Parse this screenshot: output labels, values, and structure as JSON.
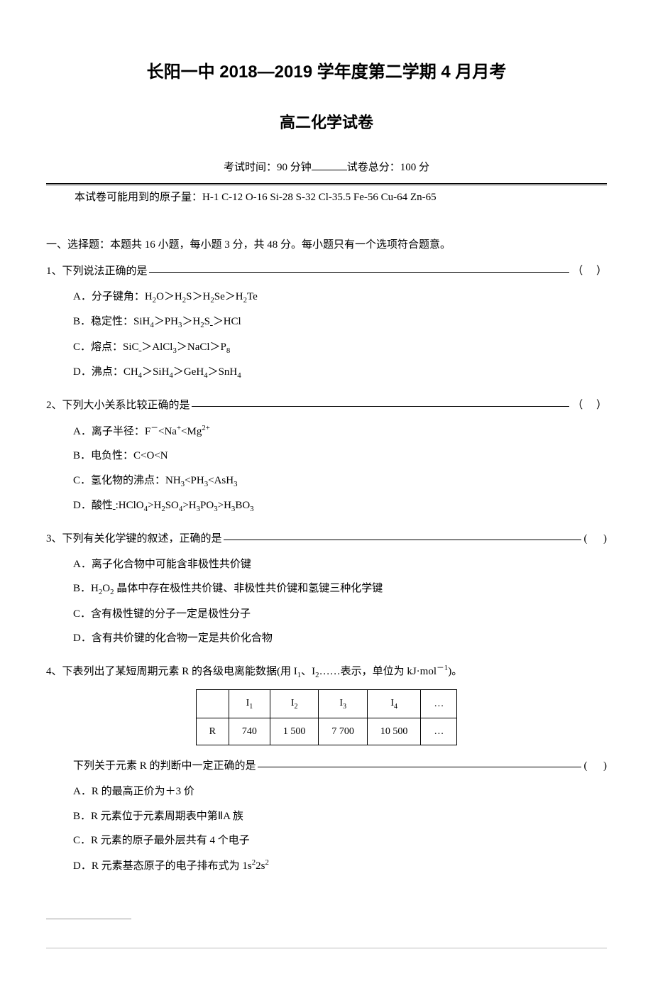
{
  "header": {
    "title_main": "长阳一中 2018—2019 学年度第二学期 4 月月考",
    "title_sub": "高二化学试卷",
    "exam_info_prefix": "考试时间：90 分钟",
    "exam_info_suffix": "试卷总分：100 分",
    "atomic_masses": "本试卷可能用到的原子量：H-1  C-12   O-16   Si-28   S-32   Cl-35.5   Fe-56   Cu-64   Zn-65"
  },
  "section1": {
    "title": "一、选择题：本题共 16 小题，每小题 3 分，共 48 分。每小题只有一个选项符合题意。"
  },
  "q1": {
    "num": "1、",
    "stem": "下列说法正确的是  ",
    "paren": "（     ）",
    "optA": "A．分子键角：H₂O＞H₂S＞H₂Se＞H₂Te",
    "optB": "B．稳定性：SiH₄＞PH₃＞H₂S ＞HCl",
    "optC": "C．熔点：SiC ＞AlCl₃＞NaCl＞P₈",
    "optD": "D．沸点：CH₄＞SiH₄＞GeH₄＞SnH₄"
  },
  "q2": {
    "num": "2、",
    "stem": "下列大小关系比较正确的是",
    "paren": "（     ）",
    "optA": "A．离子半径：F⁻<Na⁺<Mg²⁺",
    "optB": "B．电负性：C<O<N",
    "optC": "C．氢化物的沸点：NH₃<PH₃<AsH₃",
    "optD": "D．酸性 :HClO₄>H₂SO₄>H₃PO₃>H₃BO₃"
  },
  "q3": {
    "num": "3、",
    "stem": "下列有关化学键的叙述，正确的是",
    "paren": "(      )",
    "optA": "A．离子化合物中可能含非极性共价键",
    "optB": "B．H₂O₂ 晶体中存在极性共价键、非极性共价键和氢键三种化学键",
    "optC": "C．含有极性键的分子一定是极性分子",
    "optD": "D．含有共价键的化合物一定是共价化合物"
  },
  "q4": {
    "num": "4、",
    "stem": "下表列出了某短周期元素 R 的各级电离能数据(用 I₁、I₂……表示，单位为 kJ·mol⁻¹)。",
    "table": {
      "headers": [
        "",
        "I₁",
        "I₂",
        "I₃",
        "I₄",
        "…"
      ],
      "row_label": "R",
      "values": [
        "740",
        "1 500",
        "7 700",
        "10 500",
        "…"
      ]
    },
    "judge": "下列关于元素 R 的判断中一定正确的是",
    "paren": "(      )",
    "optA": "A．R 的最高正价为＋3 价",
    "optB": "B．R 元素位于元素周期表中第ⅡA 族",
    "optC": "C．R 元素的原子最外层共有 4 个电子",
    "optD": "D．R 元素基态原子的电子排布式为 1s²2s²"
  }
}
